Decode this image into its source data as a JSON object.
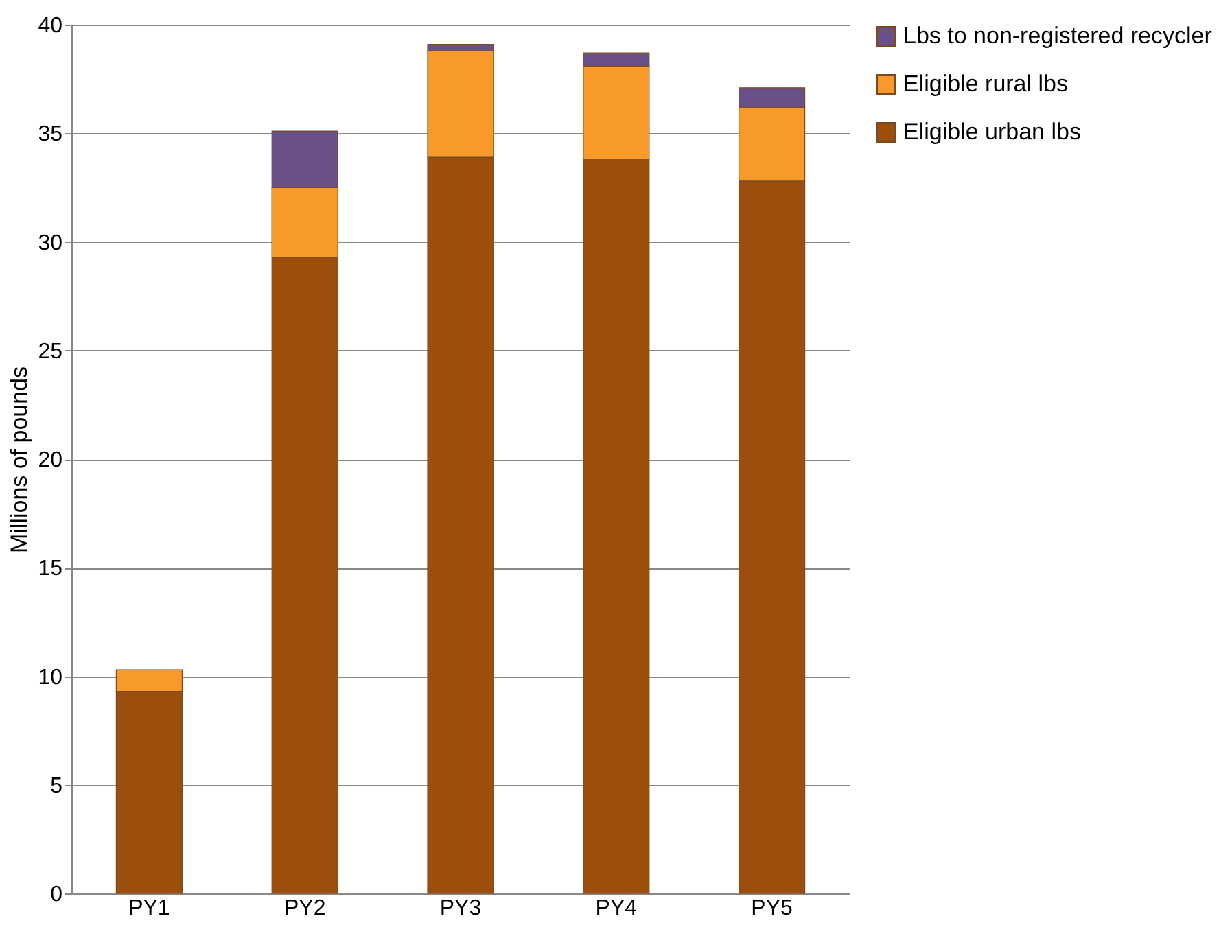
{
  "chart_data": {
    "type": "bar",
    "stacked": true,
    "ylabel": "Millions of pounds",
    "categories": [
      "PY1",
      "PY2",
      "PY3",
      "PY4",
      "PY5"
    ],
    "series": [
      {
        "name": "Eligible urban lbs",
        "color": "#9c4f0c",
        "values": [
          9.3,
          29.3,
          33.9,
          33.8,
          32.8
        ]
      },
      {
        "name": "Eligible rural lbs",
        "color": "#f79a2a",
        "values": [
          1.0,
          3.2,
          4.9,
          4.3,
          3.4
        ]
      },
      {
        "name": "Lbs to non-registered recycler",
        "color": "#6a5088",
        "values": [
          null,
          2.6,
          0.3,
          0.6,
          0.9
        ]
      }
    ],
    "ylim": [
      0,
      40
    ],
    "yticks": [
      0,
      5,
      10,
      15,
      20,
      25,
      30,
      35,
      40
    ],
    "grid": "y",
    "legend": "top right"
  }
}
